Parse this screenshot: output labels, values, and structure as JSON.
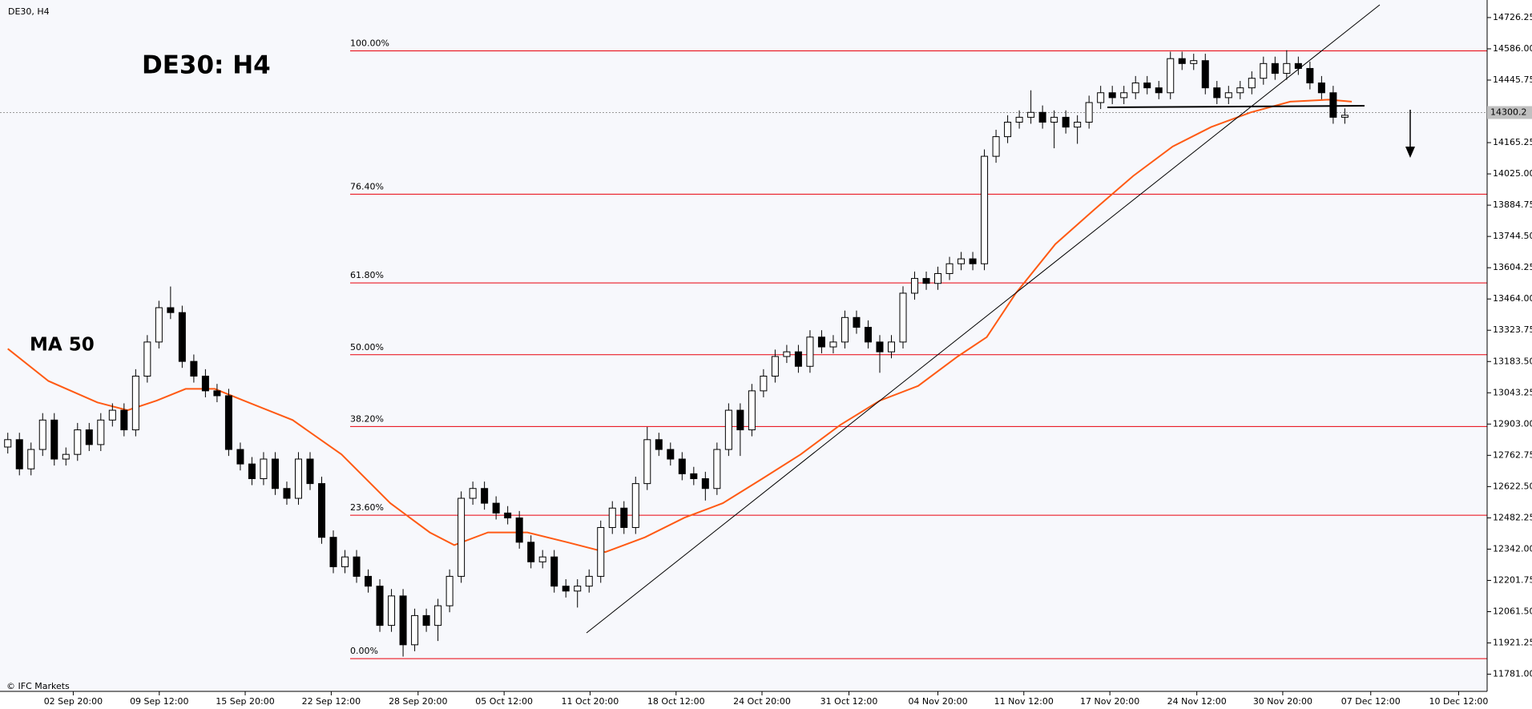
{
  "chart_data": {
    "type": "candlestick",
    "header": "DE30, H4",
    "title": "DE30: H4",
    "watermark": "© IFC Markets",
    "xlim": [
      -0.67,
      127.24
    ],
    "ylim": [
      11704,
      14805
    ],
    "xticks": [
      {
        "value": 5.63,
        "label": "02 Sep 20:00"
      },
      {
        "value": 13.03,
        "label": "09 Sep 12:00"
      },
      {
        "value": 20.42,
        "label": "15 Sep 20:00"
      },
      {
        "value": 27.82,
        "label": "22 Sep 12:00"
      },
      {
        "value": 35.29,
        "label": "28 Sep 20:00"
      },
      {
        "value": 42.69,
        "label": "05 Oct 12:00"
      },
      {
        "value": 50.08,
        "label": "11 Oct 20:00"
      },
      {
        "value": 57.48,
        "label": "18 Oct 12:00"
      },
      {
        "value": 64.87,
        "label": "24 Oct 20:00"
      },
      {
        "value": 72.35,
        "label": "31 Oct 12:00"
      },
      {
        "value": 80.0,
        "label": "04 Nov 20:00"
      },
      {
        "value": 87.39,
        "label": "11 Nov 12:00"
      },
      {
        "value": 94.79,
        "label": "17 Nov 20:00"
      },
      {
        "value": 102.27,
        "label": "24 Nov 12:00"
      },
      {
        "value": 109.66,
        "label": "30 Nov 20:00"
      },
      {
        "value": 117.23,
        "label": "07 Dec 12:00"
      },
      {
        "value": 124.79,
        "label": "10 Dec 12:00"
      }
    ],
    "yticks": [
      {
        "value": 14726.25,
        "label": "14726.25"
      },
      {
        "value": 14586,
        "label": "14586.00"
      },
      {
        "value": 14445.75,
        "label": "14445.75"
      },
      {
        "value": 14165.25,
        "label": "14165.25"
      },
      {
        "value": 14025,
        "label": "14025.00"
      },
      {
        "value": 13884.75,
        "label": "13884.75"
      },
      {
        "value": 13744.5,
        "label": "13744.50"
      },
      {
        "value": 13604.25,
        "label": "13604.25"
      },
      {
        "value": 13464,
        "label": "13464.00"
      },
      {
        "value": 13323.75,
        "label": "13323.75"
      },
      {
        "value": 13183.5,
        "label": "13183.50"
      },
      {
        "value": 13043.25,
        "label": "13043.25"
      },
      {
        "value": 12903,
        "label": "12903.00"
      },
      {
        "value": 12762.75,
        "label": "12762.75"
      },
      {
        "value": 12622.5,
        "label": "12622.50"
      },
      {
        "value": 12482.25,
        "label": "12482.25"
      },
      {
        "value": 12342,
        "label": "12342.00"
      },
      {
        "value": 12201.75,
        "label": "12201.75"
      },
      {
        "value": 12061.5,
        "label": "12061.50"
      },
      {
        "value": 11921.25,
        "label": "11921.25"
      },
      {
        "value": 11781,
        "label": "11781.00"
      }
    ],
    "current_price": {
      "value": 14300.2,
      "label": "14300.2"
    },
    "up_color": "#ffffff",
    "down_color": "#000000",
    "open": [
      12800,
      12833,
      12702,
      12789,
      12921,
      12746,
      12767,
      12877,
      12811,
      12921,
      12965,
      12877,
      13118,
      13271,
      13425,
      13403,
      13184,
      13118,
      13052,
      13030,
      12789,
      12724,
      12658,
      12746,
      12614,
      12570,
      12746,
      12636,
      12395,
      12263,
      12307,
      12220,
      12176,
      12000,
      12132,
      11913,
      12044,
      12000,
      12088,
      12220,
      12570,
      12614,
      12548,
      12504,
      12482,
      12373,
      12285,
      12307,
      12176,
      12154,
      12176,
      12220,
      12439,
      12526,
      12439,
      12636,
      12833,
      12789,
      12746,
      12680,
      12658,
      12614,
      12789,
      12965,
      12877,
      13052,
      13118,
      13206,
      13227,
      13162,
      13293,
      13249,
      13271,
      13381,
      13337,
      13271,
      13227,
      13271,
      13490,
      13556,
      13534,
      13578,
      13622,
      13644,
      13622,
      14104,
      14192,
      14257,
      14279,
      14301,
      14257,
      14279,
      14235,
      14257,
      14345,
      14389,
      14367,
      14389,
      14433,
      14411,
      14389,
      14542,
      14520,
      14533,
      14411,
      14367,
      14389,
      14411,
      14454,
      14520,
      14476,
      14520,
      14498,
      14433,
      14389,
      14279
    ],
    "high": [
      12864,
      12864,
      12820,
      12952,
      12952,
      12798,
      12908,
      12908,
      12952,
      12996,
      12996,
      13149,
      13302,
      13456,
      13520,
      13434,
      13215,
      13149,
      13083,
      13061,
      12820,
      12755,
      12777,
      12777,
      12645,
      12777,
      12777,
      12667,
      12426,
      12338,
      12338,
      12251,
      12207,
      12163,
      12163,
      12075,
      12075,
      12119,
      12251,
      12601,
      12645,
      12645,
      12579,
      12535,
      12513,
      12404,
      12338,
      12338,
      12207,
      12207,
      12251,
      12470,
      12557,
      12557,
      12667,
      12890,
      12864,
      12820,
      12777,
      12711,
      12689,
      12820,
      12996,
      12996,
      13083,
      13149,
      13237,
      13258,
      13258,
      13324,
      13324,
      13302,
      13412,
      13412,
      13368,
      13302,
      13302,
      13521,
      13587,
      13587,
      13609,
      13653,
      13675,
      13675,
      14135,
      14223,
      14288,
      14310,
      14400,
      14332,
      14310,
      14310,
      14288,
      14376,
      14420,
      14420,
      14420,
      14464,
      14464,
      14442,
      14573,
      14573,
      14564,
      14564,
      14442,
      14420,
      14442,
      14485,
      14551,
      14551,
      14580,
      14551,
      14529,
      14464,
      14420,
      14319
    ],
    "low": [
      12771,
      12673,
      12673,
      12760,
      12717,
      12717,
      12738,
      12782,
      12782,
      12892,
      12848,
      12848,
      13089,
      13242,
      13374,
      13155,
      13089,
      13023,
      13001,
      12760,
      12695,
      12629,
      12629,
      12585,
      12541,
      12541,
      12607,
      12366,
      12234,
      12234,
      12191,
      12147,
      11971,
      11971,
      11860,
      11884,
      11971,
      11930,
      12059,
      12191,
      12541,
      12519,
      12475,
      12453,
      12344,
      12256,
      12256,
      12147,
      12125,
      12080,
      12147,
      12191,
      12410,
      12410,
      12410,
      12607,
      12760,
      12717,
      12651,
      12629,
      12560,
      12585,
      12760,
      12760,
      12848,
      13023,
      13089,
      13177,
      13133,
      13133,
      13220,
      13220,
      13242,
      13308,
      13242,
      13133,
      13198,
      13242,
      13461,
      13505,
      13505,
      13549,
      13593,
      13593,
      13593,
      14075,
      14163,
      14228,
      14250,
      14228,
      14140,
      14206,
      14160,
      14228,
      14316,
      14338,
      14338,
      14360,
      14382,
      14360,
      14360,
      14491,
      14491,
      14382,
      14338,
      14338,
      14360,
      14382,
      14425,
      14447,
      14447,
      14469,
      14404,
      14360,
      14250,
      14250
    ],
    "close": [
      12833,
      12702,
      12789,
      12921,
      12746,
      12767,
      12877,
      12811,
      12921,
      12965,
      12877,
      13118,
      13271,
      13425,
      13403,
      13184,
      13118,
      13052,
      13030,
      12789,
      12724,
      12658,
      12746,
      12614,
      12570,
      12746,
      12636,
      12395,
      12263,
      12307,
      12220,
      12176,
      12000,
      12132,
      11913,
      12044,
      12000,
      12088,
      12220,
      12570,
      12614,
      12548,
      12504,
      12482,
      12373,
      12285,
      12307,
      12176,
      12154,
      12176,
      12220,
      12439,
      12526,
      12439,
      12636,
      12833,
      12789,
      12746,
      12680,
      12658,
      12614,
      12789,
      12965,
      12877,
      13052,
      13118,
      13206,
      13227,
      13162,
      13293,
      13249,
      13271,
      13381,
      13337,
      13271,
      13227,
      13271,
      13490,
      13556,
      13534,
      13578,
      13622,
      13644,
      13622,
      14104,
      14192,
      14257,
      14279,
      14301,
      14257,
      14279,
      14235,
      14257,
      14345,
      14389,
      14367,
      14389,
      14433,
      14411,
      14389,
      14542,
      14520,
      14533,
      14411,
      14367,
      14389,
      14411,
      14454,
      14520,
      14476,
      14520,
      14498,
      14433,
      14389,
      14279,
      14288
    ],
    "ma": {
      "name": "MA 50",
      "color": "#ff5a14",
      "x": [
        0,
        3.5,
        7.7,
        10.3,
        12.8,
        15.3,
        17.8,
        20.3,
        24.5,
        28.7,
        32.9,
        36.3,
        38.4,
        41.3,
        44.7,
        48.1,
        51.4,
        54.8,
        58.2,
        61.5,
        64.9,
        68.2,
        71.6,
        75,
        78.3,
        81.7,
        84.2,
        86.7,
        90.1,
        93.4,
        96.8,
        100.2,
        103.5,
        106.9,
        110.3,
        113.6,
        115.6
      ],
      "values": [
        13241,
        13096,
        13000,
        12965,
        13008,
        13061,
        13061,
        13008,
        12921,
        12767,
        12548,
        12417,
        12360,
        12417,
        12417,
        12373,
        12329,
        12395,
        12483,
        12548,
        12658,
        12767,
        12899,
        13008,
        13074,
        13206,
        13293,
        13490,
        13710,
        13863,
        14016,
        14148,
        14235,
        14301,
        14349,
        14358,
        14349
      ]
    },
    "fib_color": "#e8000b",
    "fib_levels": [
      {
        "label": "100.00%",
        "value": 14577
      },
      {
        "label": "76.40%",
        "value": 13934
      },
      {
        "label": "61.80%",
        "value": 13536
      },
      {
        "label": "50.00%",
        "value": 13214
      },
      {
        "label": "38.20%",
        "value": 12892
      },
      {
        "label": "23.60%",
        "value": 12494
      },
      {
        "label": "0.00%",
        "value": 11851
      }
    ]
  }
}
